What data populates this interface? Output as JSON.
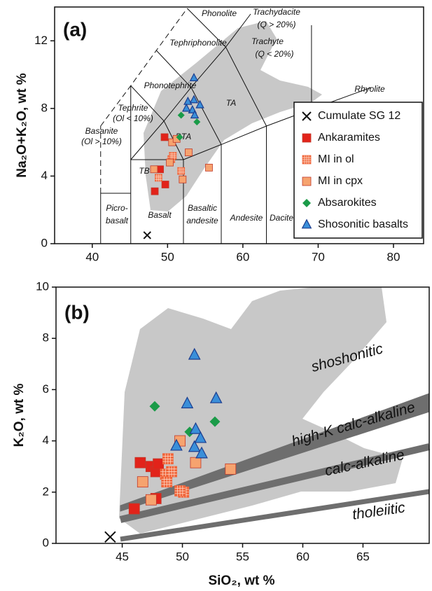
{
  "chart_data": [
    {
      "type": "scatter",
      "title": "(a)",
      "y_label": "Na₂O+K₂O, wt %",
      "xlim": [
        35,
        84
      ],
      "ylim": [
        0,
        14
      ],
      "xticks": [
        40,
        50,
        60,
        70,
        80
      ],
      "yticks": [
        0,
        4,
        8,
        12
      ],
      "legend": "lower right",
      "annotations": [
        "Phonolite",
        "Trachydacite",
        "(Q > 20%)",
        "Tephriphonolite",
        "Trachyte",
        "(Q < 20%)",
        "Phonotephrite",
        "Rhyolite",
        "TA",
        "Tephrite",
        "(Ol < 10%)",
        "Basanite",
        "(Ol > 10%)",
        "BTA",
        "TB",
        "Picro-",
        "basalt",
        "Basalt",
        "Basaltic",
        "andesite",
        "Andesite",
        "Dacite"
      ],
      "series": [
        {
          "name": "Cumulate SG 12",
          "color": "#111111",
          "marker": "x",
          "x": [
            47.3
          ],
          "y": [
            0.5
          ]
        },
        {
          "name": "Ankaramites",
          "color": "#e2231a",
          "marker": "square",
          "x": [
            48.3,
            49.0,
            49.7,
            49.6
          ],
          "y": [
            3.1,
            4.4,
            3.5,
            6.3
          ]
        },
        {
          "name": "MI in ol",
          "color": "#f0653a",
          "marker": "grid",
          "x": [
            48.8,
            50.5,
            51.8,
            50.7
          ],
          "y": [
            3.9,
            5.0,
            4.3,
            5.2
          ]
        },
        {
          "name": "MI in cpx",
          "color": "#f6a36f",
          "marker": "square",
          "x": [
            48.2,
            50.3,
            50.6,
            51.2,
            52.8,
            55.5,
            52.0
          ],
          "y": [
            4.4,
            4.8,
            6.0,
            6.2,
            5.4,
            4.5,
            3.8
          ]
        },
        {
          "name": "Absarokites",
          "color": "#1a9b48",
          "marker": "diamond",
          "x": [
            51.8,
            53.9,
            51.6
          ],
          "y": [
            7.6,
            7.2,
            6.3
          ]
        },
        {
          "name": "Shosonitic basalts",
          "color": "#3a8fd9",
          "marker": "triangle",
          "x": [
            53.5,
            52.7,
            53.5,
            54.3,
            53.3,
            53.6,
            52.5
          ],
          "y": [
            9.8,
            8.4,
            8.5,
            8.2,
            7.9,
            7.6,
            8.0
          ]
        }
      ]
    },
    {
      "type": "scatter",
      "title": "(b)",
      "x_label": "SiO₂, wt %",
      "y_label": "K₂O, wt %",
      "xlim": [
        39.5,
        70.5
      ],
      "ylim": [
        0,
        10
      ],
      "xticks": [
        45,
        50,
        55,
        60,
        65
      ],
      "yticks": [
        0,
        2,
        4,
        6,
        8,
        10
      ],
      "annotations": [
        "shoshonitic",
        "high-K calc-alkaline",
        "calc-alkaline",
        "tholeiitic"
      ],
      "series": [
        {
          "color": "#111111",
          "marker": "x",
          "x": [
            44.0
          ],
          "y": [
            0.25
          ]
        },
        {
          "color": "#e2231a",
          "marker": "square",
          "x": [
            46.0,
            46.5,
            47.4,
            47.8,
            48.0,
            47.8
          ],
          "y": [
            1.35,
            3.15,
            3.0,
            2.8,
            3.1,
            1.75
          ]
        },
        {
          "color": "#f0653a",
          "marker": "grid",
          "x": [
            48.8,
            48.6,
            48.7,
            49.1,
            50.1,
            49.8
          ],
          "y": [
            3.3,
            2.7,
            2.4,
            2.8,
            2.0,
            2.05
          ]
        },
        {
          "color": "#f6a36f",
          "marker": "square",
          "x": [
            46.7,
            47.4,
            49.8,
            51.1,
            54.0
          ],
          "y": [
            2.4,
            1.7,
            4.0,
            3.15,
            2.9
          ]
        },
        {
          "color": "#1a9b48",
          "marker": "diamond",
          "x": [
            47.7,
            50.6,
            52.7
          ],
          "y": [
            5.35,
            4.35,
            4.75
          ]
        },
        {
          "color": "#3a8fd9",
          "marker": "triangle",
          "x": [
            51.0,
            50.4,
            52.8,
            49.5,
            51.1,
            51.0,
            51.5,
            51.6
          ],
          "y": [
            7.35,
            5.45,
            5.65,
            3.8,
            4.45,
            3.75,
            4.1,
            3.5
          ]
        }
      ]
    }
  ]
}
